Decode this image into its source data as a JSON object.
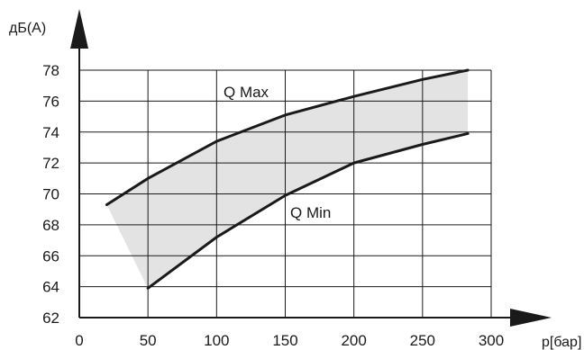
{
  "chart_data": {
    "type": "area",
    "ylabel": "дБ(А)",
    "xlabel": "p[бар]",
    "xlim": [
      0,
      300
    ],
    "ylim": [
      62,
      78
    ],
    "x_ticks": [
      0,
      50,
      100,
      150,
      200,
      250,
      300
    ],
    "y_ticks": [
      62,
      64,
      66,
      68,
      70,
      72,
      74,
      76,
      78
    ],
    "grid": true,
    "series": [
      {
        "name": "Q Max",
        "x": [
          20,
          50,
          100,
          150,
          200,
          250,
          283
        ],
        "y": [
          69.3,
          71.0,
          73.4,
          75.1,
          76.3,
          77.4,
          78.0
        ]
      },
      {
        "name": "Q Min",
        "x": [
          50,
          100,
          150,
          200,
          250,
          283
        ],
        "y": [
          63.9,
          67.2,
          69.9,
          72.0,
          73.2,
          73.9
        ]
      }
    ],
    "band": {
      "fill": "#e3e3e3",
      "between": [
        "Q Max",
        "Q Min"
      ]
    },
    "colors": {
      "line": "#1a1a1a",
      "grid": "#1a1a1a",
      "band": "#e3e3e3"
    }
  }
}
